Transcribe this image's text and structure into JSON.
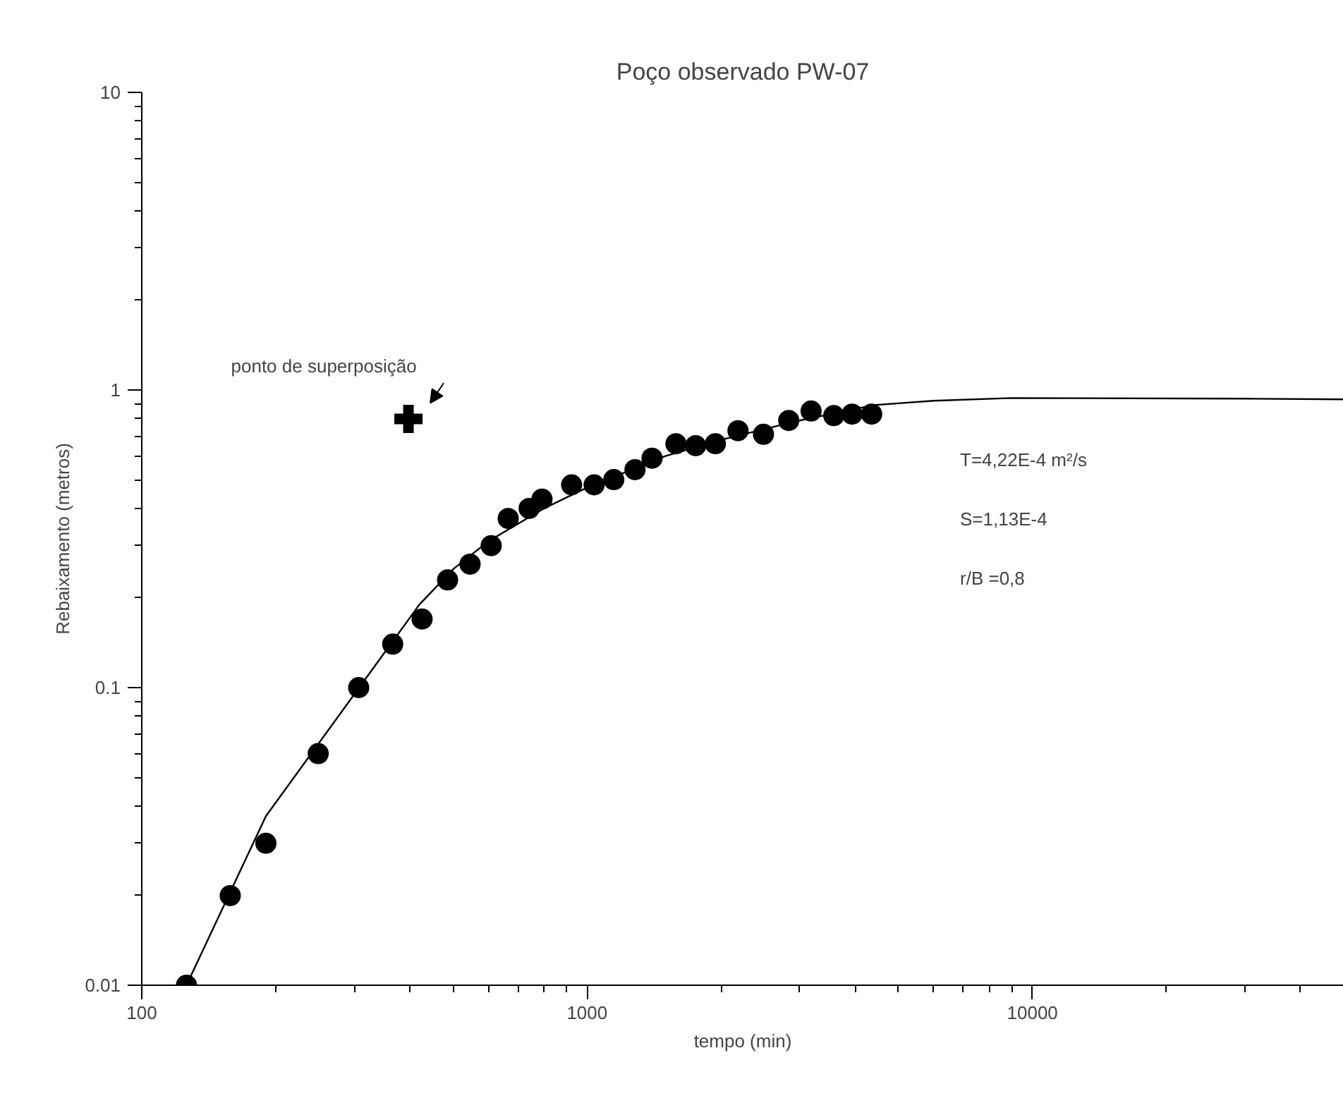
{
  "chart_data": {
    "type": "scatter",
    "title": "Poço observado PW-07",
    "xlabel": "tempo (min)",
    "ylabel": "Rebaixamento (metros)",
    "log": "xy",
    "xlim": [
      100,
      50000
    ],
    "ylim": [
      0.01,
      10
    ],
    "xticks": [
      100,
      1000,
      10000
    ],
    "yticks": [
      0.01,
      0.1,
      1,
      10
    ],
    "series": [
      {
        "type": "line",
        "color": "#000000",
        "marker": "none",
        "x": [
          126,
          190,
          420,
          500,
          600,
          800,
          1000,
          1500,
          2000,
          3000,
          4400,
          6000,
          9000,
          30000,
          50000
        ],
        "values": [
          0.01,
          0.037,
          0.19,
          0.25,
          0.31,
          0.4,
          0.47,
          0.6,
          0.68,
          0.79,
          0.89,
          0.92,
          0.94,
          0.935,
          0.93
        ]
      },
      {
        "color": "#000000",
        "marker": "circle",
        "x": [
          126,
          158,
          190,
          249,
          307,
          366,
          426,
          486,
          546,
          609,
          665,
          741,
          792,
          923,
          1037,
          1148,
          1281,
          1399,
          1583,
          1753,
          1941,
          2182,
          2489,
          2836,
          3184,
          3580,
          3936,
          4355
        ],
        "values": [
          0.01,
          0.02,
          0.03,
          0.06,
          0.1,
          0.14,
          0.17,
          0.23,
          0.26,
          0.3,
          0.37,
          0.4,
          0.43,
          0.48,
          0.48,
          0.5,
          0.54,
          0.59,
          0.66,
          0.65,
          0.66,
          0.73,
          0.71,
          0.79,
          0.85,
          0.82,
          0.83,
          0.83
        ]
      },
      {
        "color": "#000000",
        "marker": "cross",
        "x": [
          397
        ],
        "values": [
          0.8
        ]
      }
    ],
    "annotations": [
      {
        "text": "ponto de superposição",
        "x": 397,
        "y": 0.8
      },
      "T=4,22E-4 m²/s",
      "S=1,13E-4",
      "r/B =0,8"
    ]
  }
}
